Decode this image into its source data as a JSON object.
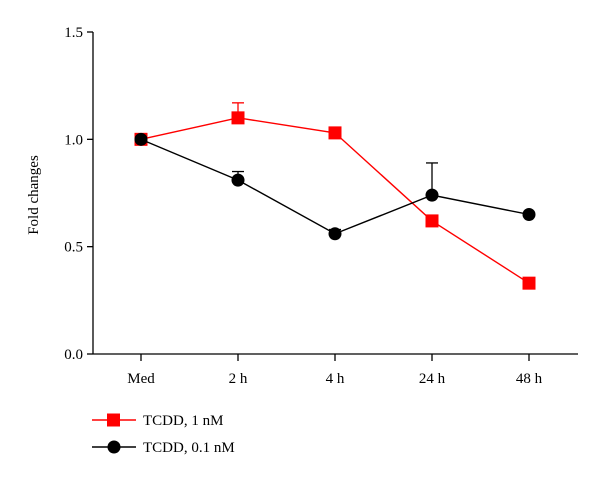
{
  "chart_data": {
    "type": "line",
    "categories": [
      "Med",
      "2 h",
      "4 h",
      "24 h",
      "48 h"
    ],
    "ylabel": "Fold changes",
    "xlabel": "",
    "ylim": [
      0,
      1.5
    ],
    "yticks": [
      "0.0",
      "0.5",
      "1.0",
      "1.5"
    ],
    "grid": false,
    "legend_position": "bottom-left",
    "series": [
      {
        "name": "TCDD, 1 nM",
        "color": "#ff0000",
        "marker": "square",
        "values": [
          1.0,
          1.1,
          1.03,
          0.62,
          0.33
        ],
        "error_upper": [
          0,
          0.07,
          0,
          0,
          0
        ]
      },
      {
        "name": "TCDD, 0.1 nM",
        "color": "#000000",
        "marker": "circle",
        "values": [
          1.0,
          0.81,
          0.56,
          0.74,
          0.65
        ],
        "error_upper": [
          0,
          0.04,
          0.02,
          0.15,
          0
        ]
      }
    ]
  }
}
